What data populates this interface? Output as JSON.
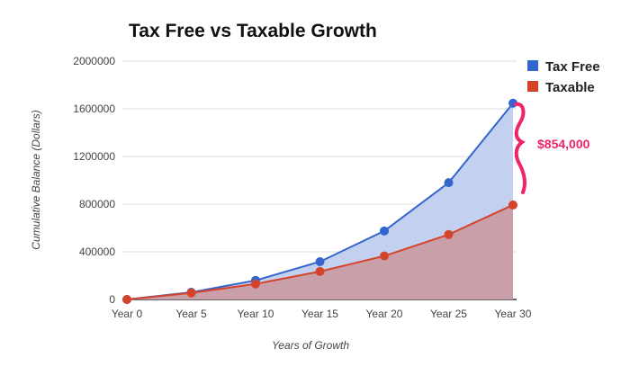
{
  "chart_data": {
    "type": "area",
    "title": "Tax Free vs Taxable Growth",
    "xlabel": "Years of Growth",
    "ylabel": "Cumulative Balance (Dollars)",
    "categories": [
      "Year 0",
      "Year 5",
      "Year 10",
      "Year 15",
      "Year 20",
      "Year 25",
      "Year 30"
    ],
    "yticks": [
      "0",
      "400000",
      "800000",
      "1200000",
      "1600000",
      "2000000"
    ],
    "ylim": [
      0,
      2000000
    ],
    "grid": true,
    "legend_position": "top-right",
    "series": [
      {
        "name": "Tax Free",
        "color": "#3366cc",
        "fill": "#c3d0ef",
        "values": [
          0,
          60000,
          160000,
          317000,
          575000,
          980000,
          1647000
        ]
      },
      {
        "name": "Taxable",
        "color": "#d6432b",
        "fill": "#c9a0aa",
        "values": [
          0,
          55000,
          130000,
          235000,
          365000,
          545000,
          793000
        ]
      }
    ],
    "annotation": {
      "text": "$854,000",
      "color": "#f0226e"
    }
  }
}
